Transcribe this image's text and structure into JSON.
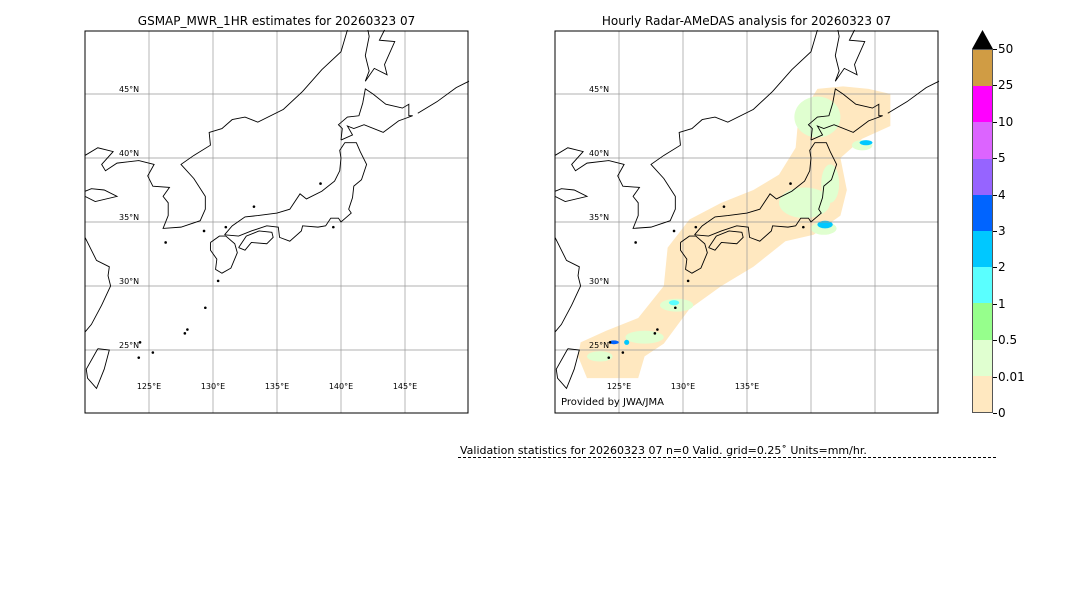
{
  "left_map": {
    "title": "GSMAP_MWR_1HR estimates for 20260323 07",
    "lat_labels": [
      "45°N",
      "40°N",
      "35°N",
      "30°N",
      "25°N"
    ],
    "lon_labels": [
      "125°E",
      "130°E",
      "135°E",
      "140°E",
      "145°E"
    ]
  },
  "right_map": {
    "title": "Hourly Radar-AMeDAS analysis for 20260323 07",
    "lat_labels": [
      "45°N",
      "40°N",
      "35°N",
      "30°N",
      "25°N"
    ],
    "lon_labels": [
      "125°E",
      "130°E",
      "135°E"
    ],
    "credit": "Provided by JWA/JMA"
  },
  "colorbar": {
    "ticks": [
      "0",
      "0.01",
      "0.5",
      "1",
      "2",
      "3",
      "4",
      "5",
      "10",
      "25",
      "50"
    ],
    "colors": [
      "#ffe8c0",
      "#e0ffd0",
      "#96ff8c",
      "#5affff",
      "#00c8ff",
      "#0064ff",
      "#9664ff",
      "#dc64ff",
      "#ff00ff",
      "#d09c44"
    ],
    "extend_color": "#000000"
  },
  "validation": {
    "text": "Validation statistics for 20260323 07  n=0 Valid. grid=0.25˚ Units=mm/hr."
  }
}
